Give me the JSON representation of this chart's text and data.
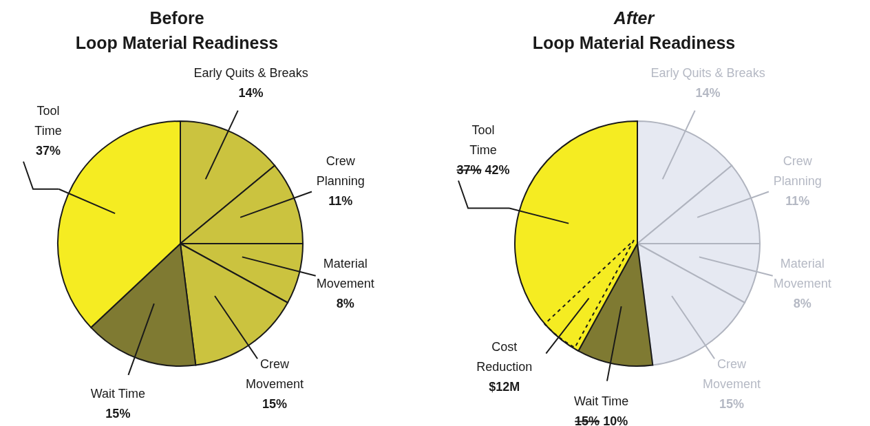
{
  "chart_data": [
    {
      "type": "pie",
      "title": "Before",
      "subtitle": "Loop Material Readiness",
      "categories": [
        "Early Quits & Breaks",
        "Crew Planning",
        "Material Movement",
        "Crew Movement",
        "Wait Time",
        "Tool Time"
      ],
      "values": [
        14,
        11,
        8,
        15,
        15,
        37
      ],
      "colors": [
        "#cbc33f",
        "#cbc33f",
        "#cbc33f",
        "#cbc33f",
        "#7f7a32",
        "#f5ec22"
      ],
      "value_labels": [
        "14%",
        "11%",
        "8%",
        "15%",
        "15%",
        "37%"
      ]
    },
    {
      "type": "pie",
      "title": "After",
      "subtitle": "Loop Material Readiness",
      "categories": [
        "Early Quits & Breaks",
        "Crew Planning",
        "Material Movement",
        "Crew Movement",
        "Wait Time",
        "Tool Time"
      ],
      "values": [
        14,
        11,
        8,
        15,
        10,
        42
      ],
      "colors": [
        "#e6e9f2",
        "#e6e9f2",
        "#e6e9f2",
        "#e6e9f2",
        "#7f7a32",
        "#f5ec22"
      ],
      "value_labels": [
        "14%",
        "11%",
        "8%",
        "15%",
        "10%",
        "42%"
      ],
      "annotations": [
        {
          "text": "15%",
          "x": "Wait Time"
        },
        {
          "text": "37%",
          "x": "Tool Time"
        },
        "Cost Reduction",
        "$12M"
      ]
    }
  ]
}
